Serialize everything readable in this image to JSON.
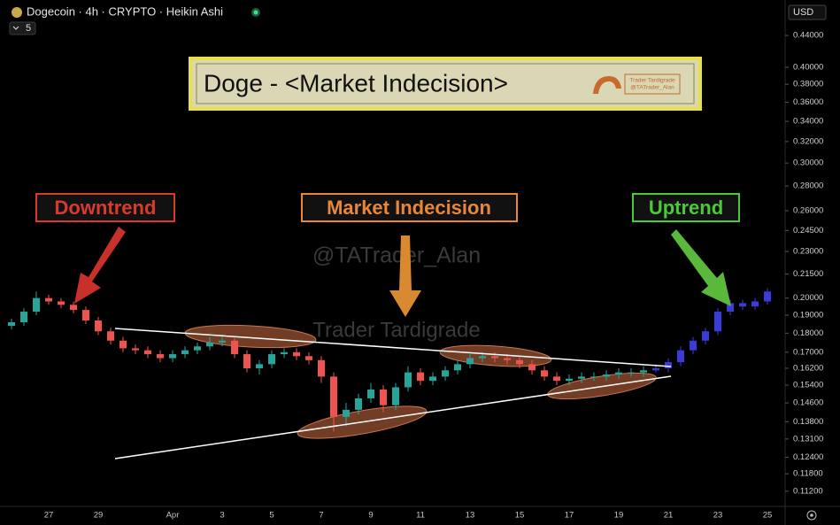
{
  "chart_data": {
    "type": "candlestick",
    "symbol_title": "Dogecoin · 4h · CRYPTO · Heikin Ashi",
    "interval_badge": "5",
    "currency": "USD",
    "title": "Doge - <Market Indecision>",
    "logo_lines": [
      "Trader Tardigrade",
      "@TATrader_Alan"
    ],
    "annotations": [
      {
        "text": "Downtrend",
        "color": "#d93a30"
      },
      {
        "text": "Market Indecision",
        "color": "#e8873a"
      },
      {
        "text": "Uptrend",
        "color": "#4cc93a"
      }
    ],
    "watermarks": [
      "@TATrader_Alan",
      "Trader Tardigrade"
    ],
    "log_scale": true,
    "grid": false,
    "categories": [
      null,
      null,
      null,
      "27",
      null,
      null,
      null,
      "29",
      null,
      null,
      null,
      null,
      null,
      "Apr",
      null,
      null,
      null,
      "3",
      null,
      null,
      null,
      "5",
      null,
      null,
      null,
      "7",
      null,
      null,
      null,
      "9",
      null,
      null,
      null,
      "11",
      null,
      null,
      null,
      "13",
      null,
      null,
      null,
      "15",
      null,
      null,
      null,
      "17",
      null,
      null,
      null,
      "19",
      null,
      null,
      null,
      "21",
      null,
      null,
      null,
      "23",
      null,
      null,
      null,
      "25"
    ],
    "series": [
      {
        "up_color": "#26a69a",
        "down_color": "#ef5350",
        "open": [
          0.184,
          0.186,
          0.192,
          0.2,
          0.198,
          0.196,
          0.193,
          0.187,
          0.181,
          0.176,
          0.172,
          0.171,
          0.169,
          0.167,
          0.169,
          0.171,
          0.173,
          0.175,
          0.176,
          0.169,
          0.162,
          0.164,
          0.169,
          0.17,
          0.168,
          0.166,
          0.158,
          0.14,
          0.143,
          0.148,
          0.152,
          0.145,
          0.153,
          0.16,
          0.156,
          0.158,
          0.161,
          0.164,
          0.167,
          0.168,
          0.167,
          0.166,
          0.164,
          0.161,
          0.158,
          0.156,
          0.157,
          0.158,
          0.158,
          0.159,
          0.16,
          0.16,
          null,
          null,
          null,
          null,
          null,
          null,
          null,
          null,
          null,
          null
        ],
        "high": [
          0.188,
          0.194,
          0.204,
          0.202,
          0.2,
          0.198,
          0.195,
          0.189,
          0.183,
          0.178,
          0.174,
          0.173,
          0.171,
          0.171,
          0.173,
          0.175,
          0.178,
          0.179,
          0.178,
          0.171,
          0.166,
          0.171,
          0.172,
          0.172,
          0.17,
          0.168,
          0.16,
          0.146,
          0.15,
          0.155,
          0.154,
          0.155,
          0.163,
          0.162,
          0.16,
          0.163,
          0.166,
          0.169,
          0.17,
          0.17,
          0.169,
          0.168,
          0.166,
          0.163,
          0.16,
          0.159,
          0.16,
          0.16,
          0.161,
          0.162,
          0.162,
          0.163,
          null,
          null,
          null,
          null,
          null,
          null,
          null,
          null,
          null,
          null
        ],
        "low": [
          0.182,
          0.184,
          0.19,
          0.196,
          0.194,
          0.191,
          0.185,
          0.179,
          0.174,
          0.17,
          0.169,
          0.167,
          0.165,
          0.165,
          0.167,
          0.169,
          0.171,
          0.173,
          0.167,
          0.16,
          0.159,
          0.162,
          0.167,
          0.166,
          0.164,
          0.155,
          0.134,
          0.136,
          0.141,
          0.146,
          0.142,
          0.143,
          0.151,
          0.154,
          0.154,
          0.156,
          0.159,
          0.162,
          0.165,
          0.165,
          0.164,
          0.162,
          0.159,
          0.156,
          0.154,
          0.154,
          0.155,
          0.156,
          0.156,
          0.157,
          0.158,
          0.158,
          null,
          null,
          null,
          null,
          null,
          null,
          null,
          null,
          null,
          null
        ],
        "close": [
          0.186,
          0.192,
          0.2,
          0.198,
          0.196,
          0.193,
          0.187,
          0.181,
          0.176,
          0.172,
          0.171,
          0.169,
          0.167,
          0.169,
          0.171,
          0.173,
          0.175,
          0.176,
          0.169,
          0.162,
          0.164,
          0.169,
          0.17,
          0.168,
          0.166,
          0.158,
          0.14,
          0.143,
          0.148,
          0.152,
          0.145,
          0.153,
          0.16,
          0.156,
          0.158,
          0.161,
          0.164,
          0.167,
          0.168,
          0.167,
          0.166,
          0.164,
          0.161,
          0.158,
          0.156,
          0.157,
          0.158,
          0.158,
          0.159,
          0.16,
          0.16,
          0.161,
          null,
          null,
          null,
          null,
          null,
          null,
          null,
          null,
          null,
          null
        ]
      },
      {
        "up_color": "#3b3bd9",
        "down_color": "#3b3bd9",
        "open": [
          null,
          null,
          null,
          null,
          null,
          null,
          null,
          null,
          null,
          null,
          null,
          null,
          null,
          null,
          null,
          null,
          null,
          null,
          null,
          null,
          null,
          null,
          null,
          null,
          null,
          null,
          null,
          null,
          null,
          null,
          null,
          null,
          null,
          null,
          null,
          null,
          null,
          null,
          null,
          null,
          null,
          null,
          null,
          null,
          null,
          null,
          null,
          null,
          null,
          null,
          null,
          null,
          0.161,
          0.162,
          0.165,
          0.171,
          0.176,
          0.181,
          0.192,
          0.197,
          0.195,
          0.198
        ],
        "high": [
          null,
          null,
          null,
          null,
          null,
          null,
          null,
          null,
          null,
          null,
          null,
          null,
          null,
          null,
          null,
          null,
          null,
          null,
          null,
          null,
          null,
          null,
          null,
          null,
          null,
          null,
          null,
          null,
          null,
          null,
          null,
          null,
          null,
          null,
          null,
          null,
          null,
          null,
          null,
          null,
          null,
          null,
          null,
          null,
          null,
          null,
          null,
          null,
          null,
          null,
          null,
          null,
          0.164,
          0.167,
          0.173,
          0.178,
          0.183,
          0.194,
          0.199,
          0.199,
          0.2,
          0.206
        ],
        "low": [
          null,
          null,
          null,
          null,
          null,
          null,
          null,
          null,
          null,
          null,
          null,
          null,
          null,
          null,
          null,
          null,
          null,
          null,
          null,
          null,
          null,
          null,
          null,
          null,
          null,
          null,
          null,
          null,
          null,
          null,
          null,
          null,
          null,
          null,
          null,
          null,
          null,
          null,
          null,
          null,
          null,
          null,
          null,
          null,
          null,
          null,
          null,
          null,
          null,
          null,
          null,
          null,
          0.16,
          0.16,
          0.163,
          0.169,
          0.174,
          0.179,
          0.19,
          0.193,
          0.193,
          0.196
        ],
        "close": [
          null,
          null,
          null,
          null,
          null,
          null,
          null,
          null,
          null,
          null,
          null,
          null,
          null,
          null,
          null,
          null,
          null,
          null,
          null,
          null,
          null,
          null,
          null,
          null,
          null,
          null,
          null,
          null,
          null,
          null,
          null,
          null,
          null,
          null,
          null,
          null,
          null,
          null,
          null,
          null,
          null,
          null,
          null,
          null,
          null,
          null,
          null,
          null,
          null,
          null,
          null,
          null,
          0.162,
          0.165,
          0.171,
          0.176,
          0.181,
          0.192,
          0.197,
          0.195,
          0.198,
          0.204
        ]
      }
    ],
    "ylim": [
      0.107,
      0.483
    ],
    "yticks": [
      {
        "value": 0.44,
        "label": "0.44000"
      },
      {
        "value": 0.4,
        "label": "0.40000"
      },
      {
        "value": 0.38,
        "label": "0.38000"
      },
      {
        "value": 0.36,
        "label": "0.36000"
      },
      {
        "value": 0.34,
        "label": "0.34000"
      },
      {
        "value": 0.32,
        "label": "0.32000"
      },
      {
        "value": 0.3,
        "label": "0.30000"
      },
      {
        "value": 0.28,
        "label": "0.28000"
      },
      {
        "value": 0.26,
        "label": "0.26000"
      },
      {
        "value": 0.245,
        "label": "0.24500"
      },
      {
        "value": 0.23,
        "label": "0.23000"
      },
      {
        "value": 0.215,
        "label": "0.21500"
      },
      {
        "value": 0.2,
        "label": "0.20000"
      },
      {
        "value": 0.19,
        "label": "0.19000"
      },
      {
        "value": 0.18,
        "label": "0.18000"
      },
      {
        "value": 0.17,
        "label": "0.17000"
      },
      {
        "value": 0.162,
        "label": "0.16200"
      },
      {
        "value": 0.154,
        "label": "0.15400"
      },
      {
        "value": 0.146,
        "label": "0.14600"
      },
      {
        "value": 0.138,
        "label": "0.13800"
      },
      {
        "value": 0.131,
        "label": "0.13100"
      },
      {
        "value": 0.124,
        "label": "0.12400"
      },
      {
        "value": 0.118,
        "label": "0.11800"
      },
      {
        "value": 0.112,
        "label": "0.11200"
      }
    ]
  }
}
